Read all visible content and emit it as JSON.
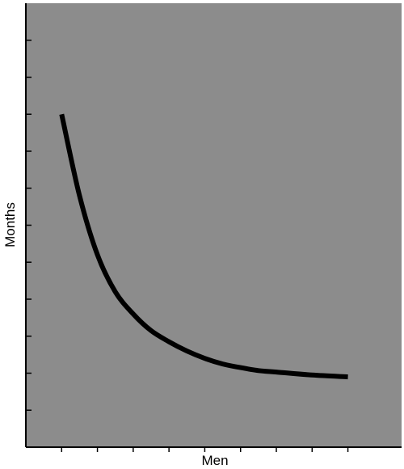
{
  "chart_data": {
    "type": "line",
    "title": "",
    "xlabel": "Men",
    "ylabel": "Months",
    "x_tick_labels": [],
    "y_tick_labels": [],
    "x_tick_count": 9,
    "y_tick_count": 11,
    "grid": false,
    "colors": {
      "plot_background": "#8c8c8c",
      "curve": "#000000",
      "axes": "#000000"
    },
    "series": [
      {
        "values": [
          [
            1,
            9
          ],
          [
            1.5,
            6.8
          ],
          [
            2,
            5.2
          ],
          [
            2.5,
            4.2
          ],
          [
            3,
            3.6
          ],
          [
            3.5,
            3.15
          ],
          [
            4,
            2.85
          ],
          [
            4.5,
            2.6
          ],
          [
            5,
            2.4
          ],
          [
            5.5,
            2.25
          ],
          [
            6,
            2.15
          ],
          [
            6.5,
            2.07
          ],
          [
            7,
            2.03
          ],
          [
            8,
            1.95
          ],
          [
            9,
            1.9
          ]
        ]
      }
    ],
    "xlim": [
      0,
      10.5
    ],
    "ylim": [
      0,
      12
    ]
  }
}
